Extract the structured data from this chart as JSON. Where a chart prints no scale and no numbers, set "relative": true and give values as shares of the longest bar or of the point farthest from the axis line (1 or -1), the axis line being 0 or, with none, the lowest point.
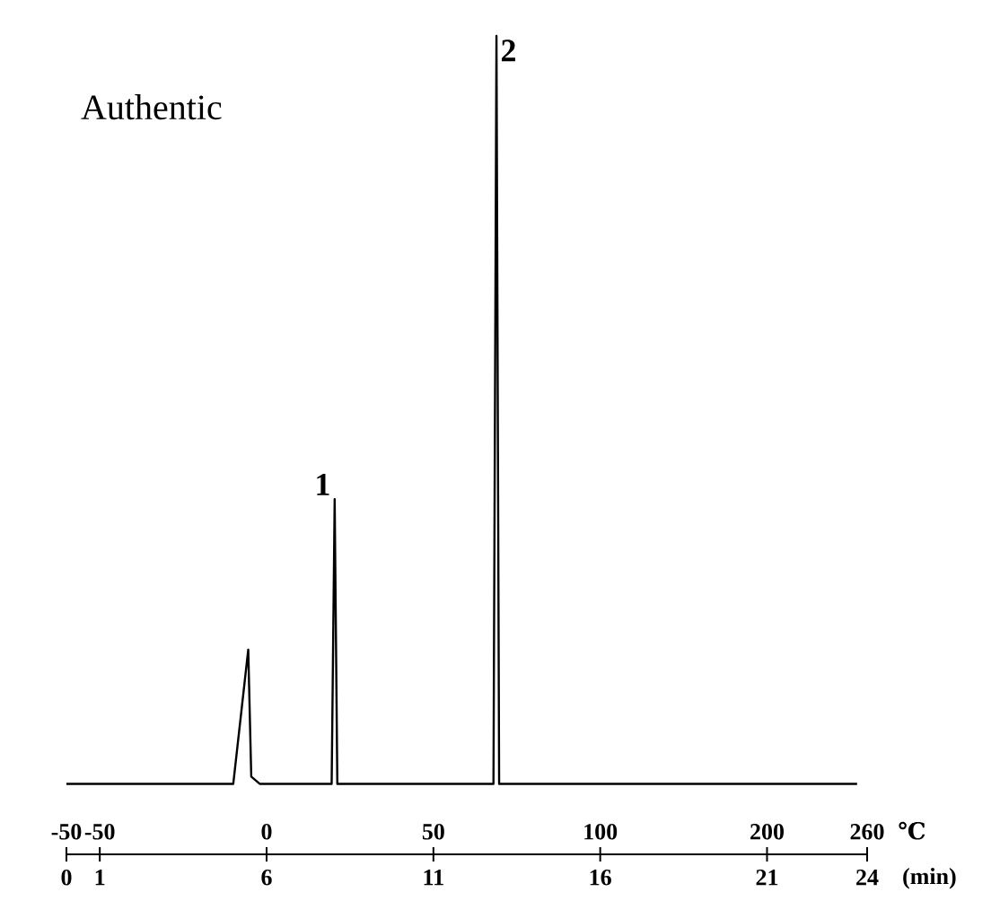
{
  "chart_data": {
    "type": "line",
    "title": "Authentic",
    "xlabel": "(min)",
    "relative": true,
    "tick_labels": "x",
    "marker": "none",
    "line_style": "solid",
    "xlim": [
      0,
      24
    ],
    "xticks": [
      0,
      1,
      6,
      11,
      16,
      21,
      24
    ],
    "series": [
      {
        "color": "#000000",
        "x": [
          0,
          5.0,
          5.45,
          5.54,
          5.8,
          7.95,
          8.04,
          8.12,
          12.8,
          12.89,
          12.97,
          23.7
        ],
        "values": [
          0.086,
          0.086,
          0.25,
          0.095,
          0.086,
          0.086,
          0.434,
          0.086,
          0.086,
          1,
          0.086,
          0.086
        ]
      }
    ],
    "annotations": [
      {
        "text": "1",
        "x": 8.04,
        "y": 0.434
      },
      {
        "text": "2",
        "x": 12.89,
        "y": 1
      },
      "-50",
      "-50",
      "0",
      "50",
      "100",
      "200",
      "260",
      "℃"
    ]
  }
}
